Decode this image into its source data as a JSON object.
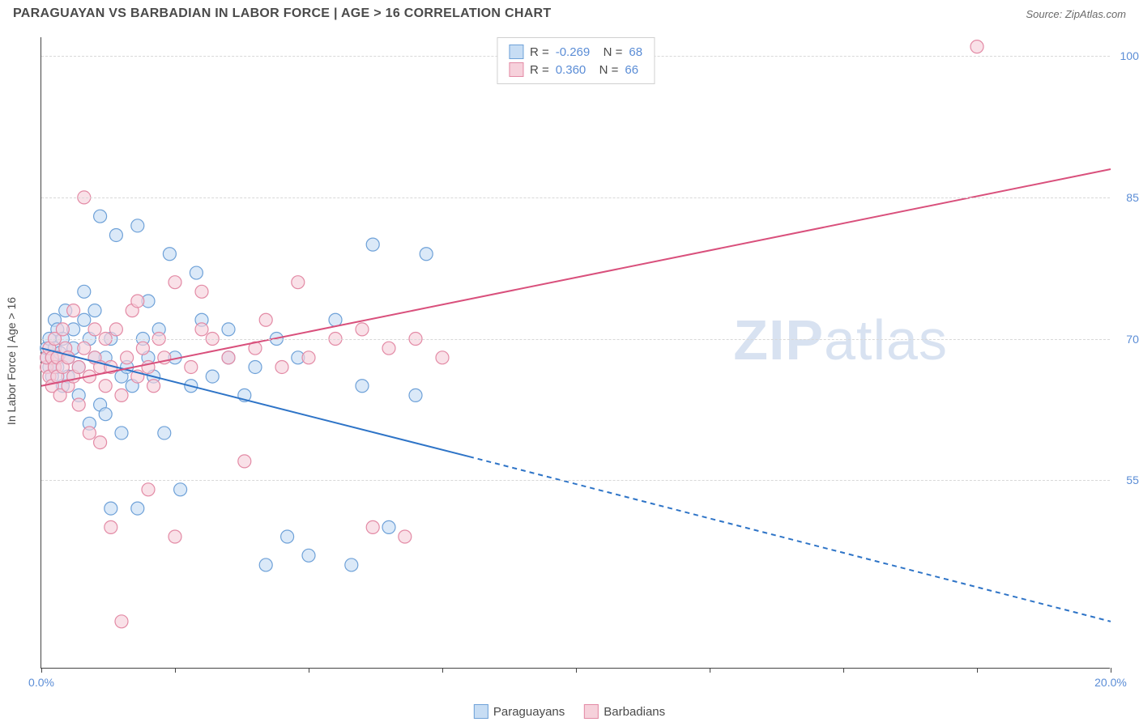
{
  "header": {
    "title": "PARAGUAYAN VS BARBADIAN IN LABOR FORCE | AGE > 16 CORRELATION CHART",
    "source": "Source: ZipAtlas.com"
  },
  "chart": {
    "type": "scatter",
    "ylabel": "In Labor Force | Age > 16",
    "xlim": [
      0,
      20
    ],
    "ylim": [
      35,
      102
    ],
    "xtick_label_left": "0.0%",
    "xtick_label_right": "20.0%",
    "xticks": [
      0,
      2.5,
      5,
      7.5,
      10,
      12.5,
      15,
      17.5,
      20
    ],
    "yticks": [
      55,
      70,
      85,
      100
    ],
    "ytick_labels": [
      "55.0%",
      "70.0%",
      "85.0%",
      "100.0%"
    ],
    "grid_color": "#d8d8d8",
    "background_color": "#ffffff",
    "axis_color": "#444444",
    "watermark": "ZIPatlas",
    "series": [
      {
        "name": "Paraguayans",
        "fill": "#c7ddf4",
        "stroke": "#6ea1d8",
        "line_color": "#2e74c7",
        "R": "-0.269",
        "N": "68",
        "regression": {
          "x1": 0,
          "y1": 69,
          "x2_solid": 8,
          "y2_solid": 57.5,
          "x2_dash": 20,
          "y2_dash": 40
        },
        "points": [
          [
            0.1,
            68
          ],
          [
            0.1,
            69
          ],
          [
            0.15,
            67
          ],
          [
            0.15,
            70
          ],
          [
            0.2,
            68
          ],
          [
            0.2,
            66
          ],
          [
            0.25,
            69
          ],
          [
            0.25,
            72
          ],
          [
            0.3,
            67
          ],
          [
            0.3,
            71
          ],
          [
            0.35,
            68.5
          ],
          [
            0.4,
            65
          ],
          [
            0.4,
            70
          ],
          [
            0.45,
            73
          ],
          [
            0.5,
            68
          ],
          [
            0.5,
            66
          ],
          [
            0.6,
            71
          ],
          [
            0.6,
            69
          ],
          [
            0.7,
            64
          ],
          [
            0.7,
            67
          ],
          [
            0.8,
            72
          ],
          [
            0.8,
            75
          ],
          [
            0.9,
            70
          ],
          [
            0.9,
            61
          ],
          [
            1.0,
            68
          ],
          [
            1.0,
            73
          ],
          [
            1.1,
            63
          ],
          [
            1.1,
            83
          ],
          [
            1.2,
            62
          ],
          [
            1.2,
            68
          ],
          [
            1.3,
            70
          ],
          [
            1.3,
            52
          ],
          [
            1.4,
            81
          ],
          [
            1.5,
            66
          ],
          [
            1.5,
            60
          ],
          [
            1.6,
            67
          ],
          [
            1.7,
            65
          ],
          [
            1.8,
            82
          ],
          [
            1.8,
            52
          ],
          [
            1.9,
            70
          ],
          [
            2.0,
            68
          ],
          [
            2.0,
            74
          ],
          [
            2.1,
            66
          ],
          [
            2.2,
            71
          ],
          [
            2.3,
            60
          ],
          [
            2.4,
            79
          ],
          [
            2.5,
            68
          ],
          [
            2.6,
            54
          ],
          [
            2.8,
            65
          ],
          [
            2.9,
            77
          ],
          [
            3.0,
            72
          ],
          [
            3.2,
            66
          ],
          [
            3.5,
            68
          ],
          [
            3.5,
            71
          ],
          [
            3.8,
            64
          ],
          [
            4.0,
            67
          ],
          [
            4.2,
            46
          ],
          [
            4.4,
            70
          ],
          [
            4.6,
            49
          ],
          [
            4.8,
            68
          ],
          [
            5.0,
            47
          ],
          [
            5.5,
            72
          ],
          [
            5.8,
            46
          ],
          [
            6.0,
            65
          ],
          [
            6.2,
            80
          ],
          [
            6.5,
            50
          ],
          [
            7.0,
            64
          ],
          [
            7.2,
            79
          ]
        ]
      },
      {
        "name": "Barbadians",
        "fill": "#f6d1db",
        "stroke": "#e38aa5",
        "line_color": "#d9507c",
        "R": "0.360",
        "N": "66",
        "regression": {
          "x1": 0,
          "y1": 65,
          "x2_solid": 20,
          "y2_solid": 88,
          "x2_dash": 20,
          "y2_dash": 88
        },
        "points": [
          [
            0.1,
            67
          ],
          [
            0.1,
            68
          ],
          [
            0.15,
            66
          ],
          [
            0.15,
            69
          ],
          [
            0.2,
            65
          ],
          [
            0.2,
            68
          ],
          [
            0.25,
            67
          ],
          [
            0.25,
            70
          ],
          [
            0.3,
            66
          ],
          [
            0.3,
            68
          ],
          [
            0.35,
            64
          ],
          [
            0.4,
            67
          ],
          [
            0.4,
            71
          ],
          [
            0.45,
            69
          ],
          [
            0.5,
            65
          ],
          [
            0.5,
            68
          ],
          [
            0.6,
            66
          ],
          [
            0.6,
            73
          ],
          [
            0.7,
            63
          ],
          [
            0.7,
            67
          ],
          [
            0.8,
            69
          ],
          [
            0.8,
            85
          ],
          [
            0.9,
            66
          ],
          [
            0.9,
            60
          ],
          [
            1.0,
            68
          ],
          [
            1.0,
            71
          ],
          [
            1.1,
            67
          ],
          [
            1.1,
            59
          ],
          [
            1.2,
            70
          ],
          [
            1.2,
            65
          ],
          [
            1.3,
            50
          ],
          [
            1.3,
            67
          ],
          [
            1.4,
            71
          ],
          [
            1.5,
            64
          ],
          [
            1.5,
            40
          ],
          [
            1.6,
            68
          ],
          [
            1.7,
            73
          ],
          [
            1.8,
            66
          ],
          [
            1.8,
            74
          ],
          [
            1.9,
            69
          ],
          [
            2.0,
            67
          ],
          [
            2.0,
            54
          ],
          [
            2.1,
            65
          ],
          [
            2.2,
            70
          ],
          [
            2.3,
            68
          ],
          [
            2.5,
            76
          ],
          [
            2.5,
            49
          ],
          [
            2.8,
            67
          ],
          [
            3.0,
            71
          ],
          [
            3.0,
            75
          ],
          [
            3.2,
            70
          ],
          [
            3.5,
            68
          ],
          [
            3.8,
            57
          ],
          [
            4.0,
            69
          ],
          [
            4.2,
            72
          ],
          [
            4.5,
            67
          ],
          [
            4.8,
            76
          ],
          [
            5.0,
            68
          ],
          [
            5.5,
            70
          ],
          [
            6.0,
            71
          ],
          [
            6.2,
            50
          ],
          [
            6.5,
            69
          ],
          [
            6.8,
            49
          ],
          [
            7.0,
            70
          ],
          [
            7.5,
            68
          ],
          [
            17.5,
            101
          ]
        ]
      }
    ],
    "marker_radius": 8,
    "marker_opacity": 0.65,
    "line_width": 2,
    "label_fontsize": 14,
    "label_color": "#5b8dd6"
  },
  "legend_bottom": {
    "items": [
      "Paraguayans",
      "Barbadians"
    ]
  }
}
